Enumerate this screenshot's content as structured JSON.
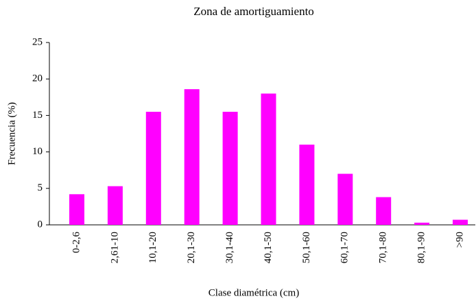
{
  "chart_data": {
    "type": "bar",
    "title": "Zona de amortiguamiento",
    "x_label": "Clase diamétrica (cm)",
    "y_label": "Frecuencia (%)",
    "categories": [
      "0-2,6",
      "2,61-10",
      "10,1-20",
      "20,1-30",
      "30,1-40",
      "40,1-50",
      "50,1-60",
      "60,1-70",
      "70,1-80",
      "80,1-90",
      ">90"
    ],
    "values": [
      4.2,
      5.3,
      15.5,
      18.6,
      15.5,
      18.0,
      11.0,
      7.0,
      3.8,
      0.3,
      0.7
    ],
    "color": "#ff00ff",
    "ylim": [
      0,
      25
    ],
    "yticks": [
      0,
      5,
      10,
      15,
      20,
      25
    ],
    "grid": false
  }
}
